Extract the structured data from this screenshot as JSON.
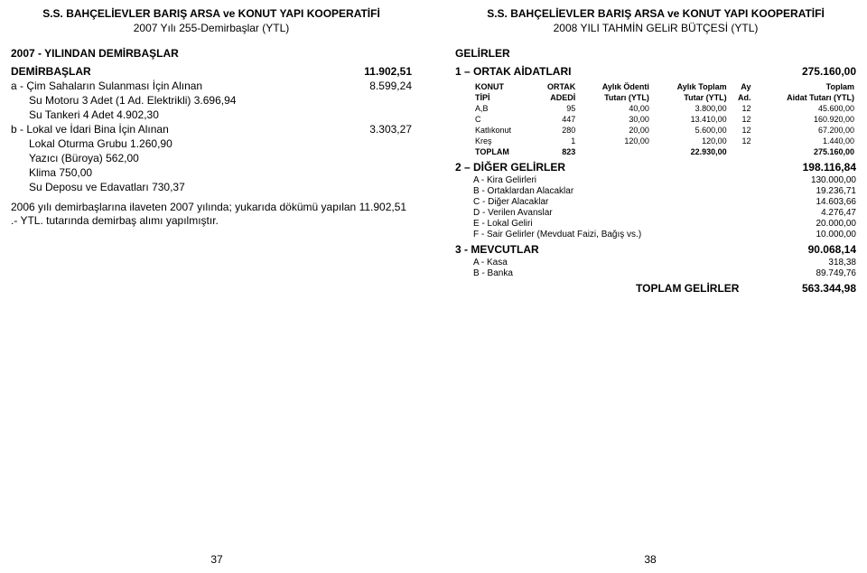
{
  "left": {
    "title1": "S.S. BAHÇELİEVLER BARIŞ ARSA ve KONUT YAPI KOOPERATİFİ",
    "title2": "2007 Yılı 255-Demirbaşlar (YTL)",
    "section": "2007 - YILINDAN DEMİRBAŞLAR",
    "heading_label": "DEMİRBAŞLAR",
    "heading_value": "11.902,51",
    "rows": [
      {
        "label": "a - Çim Sahaların Sulanması İçin Alınan",
        "value": "8.599,24",
        "indent": 0
      },
      {
        "label": "Su Motoru 3 Adet (1 Ad. Elektrikli)  3.696,94",
        "value": "",
        "indent": 1
      },
      {
        "label": "Su Tankeri 4 Adet                          4.902,30",
        "value": "",
        "indent": 1
      },
      {
        "label": "b - Lokal ve İdari Bina İçin Alınan",
        "value": "3.303,27",
        "indent": 0
      },
      {
        "label": "Lokal Oturma Grubu                     1.260,90",
        "value": "",
        "indent": 1
      },
      {
        "label": "Yazıcı (Büroya)                                562,00",
        "value": "",
        "indent": 1
      },
      {
        "label": "Klima                                               750,00",
        "value": "",
        "indent": 1
      },
      {
        "label": "Su Deposu ve Edavatları                 730,37",
        "value": "",
        "indent": 1
      }
    ],
    "note": "2006 yılı demirbaşlarına ilaveten 2007 yılında; yukarıda dökümü yapılan 11.902,51 .- YTL. tutarında demirbaş alımı yapılmıştır.",
    "pgnum": "37"
  },
  "right": {
    "title1": "S.S. BAHÇELİEVLER BARIŞ ARSA ve KONUT YAPI KOOPERATİFİ",
    "title2": "2008 YILI TAHMİN GELiR BÜTÇESİ (YTL)",
    "gelirler": "GELİRLER",
    "grp1_label": "1 – ORTAK AİDATLARI",
    "grp1_val": "275.160,00",
    "table": {
      "head": [
        "KONUT",
        "ORTAK",
        "Aylık Ödenti",
        "Aylık Toplam",
        "Ay",
        "Toplam"
      ],
      "head2": [
        "TİPİ",
        "ADEDİ",
        "Tutarı (YTL)",
        "Tutar (YTL)",
        "Ad.",
        "Aidat Tutarı (YTL)"
      ],
      "rows": [
        [
          "A,B",
          "95",
          "40,00",
          "3.800,00",
          "12",
          "45.600,00"
        ],
        [
          "C",
          "447",
          "30,00",
          "13.410,00",
          "12",
          "160.920,00"
        ],
        [
          "Katlıkonut",
          "280",
          "20,00",
          "5.600,00",
          "12",
          "67.200,00"
        ],
        [
          "Kreş",
          "1",
          "120,00",
          "120,00",
          "12",
          "1.440,00"
        ]
      ],
      "total": [
        "TOPLAM",
        "823",
        "",
        "22.930,00",
        "",
        "275.160,00"
      ]
    },
    "grp2_label": "2 – DİĞER GELİRLER",
    "grp2_val": "198.116,84",
    "grp2_rows": [
      {
        "l": "A - Kira Gelirleri",
        "v": "130.000,00"
      },
      {
        "l": "B - Ortaklardan Alacaklar",
        "v": "19.236,71"
      },
      {
        "l": "C - Diğer Alacaklar",
        "v": "14.603,66"
      },
      {
        "l": "D - Verilen Avanslar",
        "v": "4.276,47"
      },
      {
        "l": "E - Lokal Geliri",
        "v": "20.000,00"
      },
      {
        "l": "F - Sair Gelirler (Mevduat Faizi, Bağış vs.)",
        "v": "10.000,00"
      }
    ],
    "grp3_label": "3 - MEVCUTLAR",
    "grp3_val": "90.068,14",
    "grp3_rows": [
      {
        "l": "A - Kasa",
        "v": "318,38"
      },
      {
        "l": "B - Banka",
        "v": "89.749,76"
      }
    ],
    "total_label": "TOPLAM GELİRLER",
    "total_val": "563.344,98",
    "pgnum": "38"
  }
}
